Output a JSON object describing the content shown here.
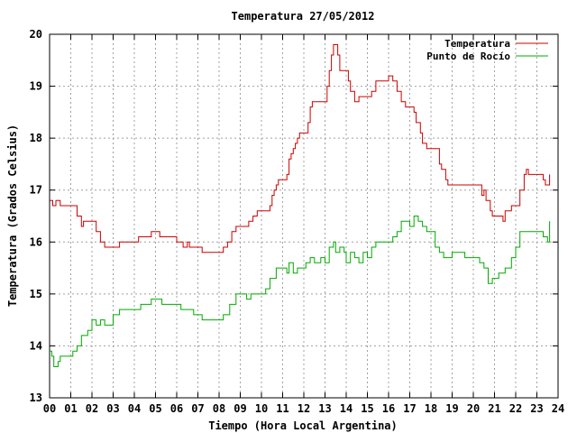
{
  "chart_data": {
    "type": "line",
    "title": "Temperatura 27/05/2012",
    "xlabel": "Tiempo (Hora Local Argentina)",
    "ylabel": "Temperatura (Grados Celsius)",
    "xlim": [
      0,
      24
    ],
    "ylim": [
      13,
      20
    ],
    "x_ticks": [
      "00",
      "01",
      "02",
      "03",
      "04",
      "05",
      "06",
      "07",
      "08",
      "09",
      "10",
      "11",
      "12",
      "13",
      "14",
      "15",
      "16",
      "17",
      "18",
      "19",
      "20",
      "21",
      "22",
      "23",
      "24"
    ],
    "y_ticks": [
      "13",
      "14",
      "15",
      "16",
      "17",
      "18",
      "19",
      "20"
    ],
    "grid": true,
    "legend_position": "top-right",
    "series": [
      {
        "name": "Temperatura",
        "color": "#cc0000",
        "points": [
          [
            0.0,
            16.8
          ],
          [
            0.15,
            16.7
          ],
          [
            0.3,
            16.8
          ],
          [
            0.5,
            16.7
          ],
          [
            1.0,
            16.7
          ],
          [
            1.3,
            16.5
          ],
          [
            1.5,
            16.3
          ],
          [
            1.6,
            16.4
          ],
          [
            2.0,
            16.4
          ],
          [
            2.2,
            16.2
          ],
          [
            2.4,
            16.0
          ],
          [
            2.6,
            15.9
          ],
          [
            3.0,
            15.9
          ],
          [
            3.3,
            16.0
          ],
          [
            4.0,
            16.0
          ],
          [
            4.2,
            16.1
          ],
          [
            4.5,
            16.1
          ],
          [
            4.8,
            16.2
          ],
          [
            5.0,
            16.2
          ],
          [
            5.2,
            16.1
          ],
          [
            5.5,
            16.1
          ],
          [
            6.0,
            16.0
          ],
          [
            6.2,
            16.0
          ],
          [
            6.3,
            15.9
          ],
          [
            6.5,
            16.0
          ],
          [
            6.6,
            15.9
          ],
          [
            7.0,
            15.9
          ],
          [
            7.2,
            15.8
          ],
          [
            7.5,
            15.8
          ],
          [
            8.0,
            15.8
          ],
          [
            8.2,
            15.9
          ],
          [
            8.4,
            16.0
          ],
          [
            8.6,
            16.2
          ],
          [
            8.8,
            16.3
          ],
          [
            9.2,
            16.3
          ],
          [
            9.4,
            16.4
          ],
          [
            9.6,
            16.5
          ],
          [
            9.8,
            16.6
          ],
          [
            10.2,
            16.6
          ],
          [
            10.4,
            16.7
          ],
          [
            10.5,
            16.9
          ],
          [
            10.6,
            17.0
          ],
          [
            10.7,
            17.1
          ],
          [
            10.8,
            17.2
          ],
          [
            11.0,
            17.2
          ],
          [
            11.2,
            17.3
          ],
          [
            11.3,
            17.6
          ],
          [
            11.4,
            17.7
          ],
          [
            11.5,
            17.8
          ],
          [
            11.6,
            17.9
          ],
          [
            11.7,
            18.0
          ],
          [
            11.8,
            18.1
          ],
          [
            12.0,
            18.1
          ],
          [
            12.2,
            18.3
          ],
          [
            12.3,
            18.6
          ],
          [
            12.4,
            18.7
          ],
          [
            12.8,
            18.7
          ],
          [
            13.0,
            18.7
          ],
          [
            13.1,
            19.0
          ],
          [
            13.2,
            19.3
          ],
          [
            13.3,
            19.6
          ],
          [
            13.4,
            19.8
          ],
          [
            13.5,
            19.8
          ],
          [
            13.6,
            19.6
          ],
          [
            13.7,
            19.3
          ],
          [
            14.0,
            19.3
          ],
          [
            14.1,
            19.1
          ],
          [
            14.2,
            18.9
          ],
          [
            14.4,
            18.7
          ],
          [
            14.6,
            18.8
          ],
          [
            15.0,
            18.8
          ],
          [
            15.2,
            18.9
          ],
          [
            15.4,
            19.1
          ],
          [
            15.8,
            19.1
          ],
          [
            16.0,
            19.2
          ],
          [
            16.2,
            19.1
          ],
          [
            16.4,
            18.9
          ],
          [
            16.6,
            18.7
          ],
          [
            16.8,
            18.6
          ],
          [
            17.2,
            18.5
          ],
          [
            17.3,
            18.3
          ],
          [
            17.5,
            18.1
          ],
          [
            17.6,
            17.9
          ],
          [
            17.8,
            17.8
          ],
          [
            18.3,
            17.8
          ],
          [
            18.4,
            17.5
          ],
          [
            18.5,
            17.4
          ],
          [
            18.7,
            17.2
          ],
          [
            18.8,
            17.1
          ],
          [
            19.5,
            17.1
          ],
          [
            20.3,
            17.1
          ],
          [
            20.4,
            16.9
          ],
          [
            20.5,
            17.0
          ],
          [
            20.6,
            16.8
          ],
          [
            20.8,
            16.6
          ],
          [
            20.9,
            16.5
          ],
          [
            21.3,
            16.5
          ],
          [
            21.4,
            16.4
          ],
          [
            21.5,
            16.6
          ],
          [
            21.8,
            16.7
          ],
          [
            22.0,
            16.7
          ],
          [
            22.2,
            17.0
          ],
          [
            22.4,
            17.3
          ],
          [
            22.5,
            17.4
          ],
          [
            22.6,
            17.3
          ],
          [
            23.0,
            17.3
          ],
          [
            23.2,
            17.3
          ],
          [
            23.3,
            17.2
          ],
          [
            23.4,
            17.1
          ],
          [
            23.5,
            17.1
          ],
          [
            23.6,
            17.3
          ]
        ]
      },
      {
        "name": "Punto de Rocío",
        "color": "#00aa00",
        "points": [
          [
            0.0,
            13.9
          ],
          [
            0.1,
            13.8
          ],
          [
            0.2,
            13.6
          ],
          [
            0.4,
            13.7
          ],
          [
            0.5,
            13.8
          ],
          [
            1.0,
            13.8
          ],
          [
            1.1,
            13.9
          ],
          [
            1.3,
            14.0
          ],
          [
            1.5,
            14.2
          ],
          [
            1.8,
            14.3
          ],
          [
            2.0,
            14.5
          ],
          [
            2.2,
            14.4
          ],
          [
            2.4,
            14.5
          ],
          [
            2.6,
            14.4
          ],
          [
            3.0,
            14.6
          ],
          [
            3.3,
            14.7
          ],
          [
            4.0,
            14.7
          ],
          [
            4.3,
            14.8
          ],
          [
            4.6,
            14.8
          ],
          [
            4.8,
            14.9
          ],
          [
            5.2,
            14.9
          ],
          [
            5.3,
            14.8
          ],
          [
            6.0,
            14.8
          ],
          [
            6.2,
            14.7
          ],
          [
            6.7,
            14.7
          ],
          [
            6.8,
            14.6
          ],
          [
            7.0,
            14.6
          ],
          [
            7.2,
            14.5
          ],
          [
            8.0,
            14.5
          ],
          [
            8.2,
            14.6
          ],
          [
            8.5,
            14.8
          ],
          [
            8.8,
            15.0
          ],
          [
            9.2,
            15.0
          ],
          [
            9.3,
            14.9
          ],
          [
            9.5,
            15.0
          ],
          [
            10.0,
            15.0
          ],
          [
            10.2,
            15.1
          ],
          [
            10.4,
            15.3
          ],
          [
            10.7,
            15.5
          ],
          [
            11.0,
            15.5
          ],
          [
            11.2,
            15.4
          ],
          [
            11.3,
            15.6
          ],
          [
            11.5,
            15.4
          ],
          [
            11.7,
            15.5
          ],
          [
            12.0,
            15.5
          ],
          [
            12.1,
            15.6
          ],
          [
            12.3,
            15.7
          ],
          [
            12.5,
            15.6
          ],
          [
            12.8,
            15.7
          ],
          [
            13.0,
            15.6
          ],
          [
            13.2,
            15.9
          ],
          [
            13.4,
            16.0
          ],
          [
            13.5,
            15.8
          ],
          [
            13.7,
            15.9
          ],
          [
            13.9,
            15.8
          ],
          [
            14.0,
            15.6
          ],
          [
            14.2,
            15.8
          ],
          [
            14.4,
            15.7
          ],
          [
            14.6,
            15.6
          ],
          [
            14.8,
            15.8
          ],
          [
            15.0,
            15.7
          ],
          [
            15.2,
            15.9
          ],
          [
            15.4,
            16.0
          ],
          [
            16.0,
            16.0
          ],
          [
            16.2,
            16.1
          ],
          [
            16.4,
            16.2
          ],
          [
            16.6,
            16.4
          ],
          [
            17.0,
            16.3
          ],
          [
            17.2,
            16.5
          ],
          [
            17.4,
            16.4
          ],
          [
            17.6,
            16.3
          ],
          [
            17.8,
            16.2
          ],
          [
            18.0,
            16.2
          ],
          [
            18.2,
            15.9
          ],
          [
            18.4,
            15.8
          ],
          [
            18.6,
            15.7
          ],
          [
            19.0,
            15.8
          ],
          [
            19.4,
            15.8
          ],
          [
            19.6,
            15.7
          ],
          [
            20.0,
            15.7
          ],
          [
            20.3,
            15.6
          ],
          [
            20.5,
            15.5
          ],
          [
            20.7,
            15.2
          ],
          [
            20.9,
            15.3
          ],
          [
            21.2,
            15.4
          ],
          [
            21.5,
            15.5
          ],
          [
            21.8,
            15.7
          ],
          [
            22.0,
            15.9
          ],
          [
            22.2,
            16.2
          ],
          [
            22.5,
            16.2
          ],
          [
            23.0,
            16.2
          ],
          [
            23.3,
            16.1
          ],
          [
            23.5,
            16.0
          ],
          [
            23.6,
            16.4
          ]
        ]
      }
    ]
  }
}
